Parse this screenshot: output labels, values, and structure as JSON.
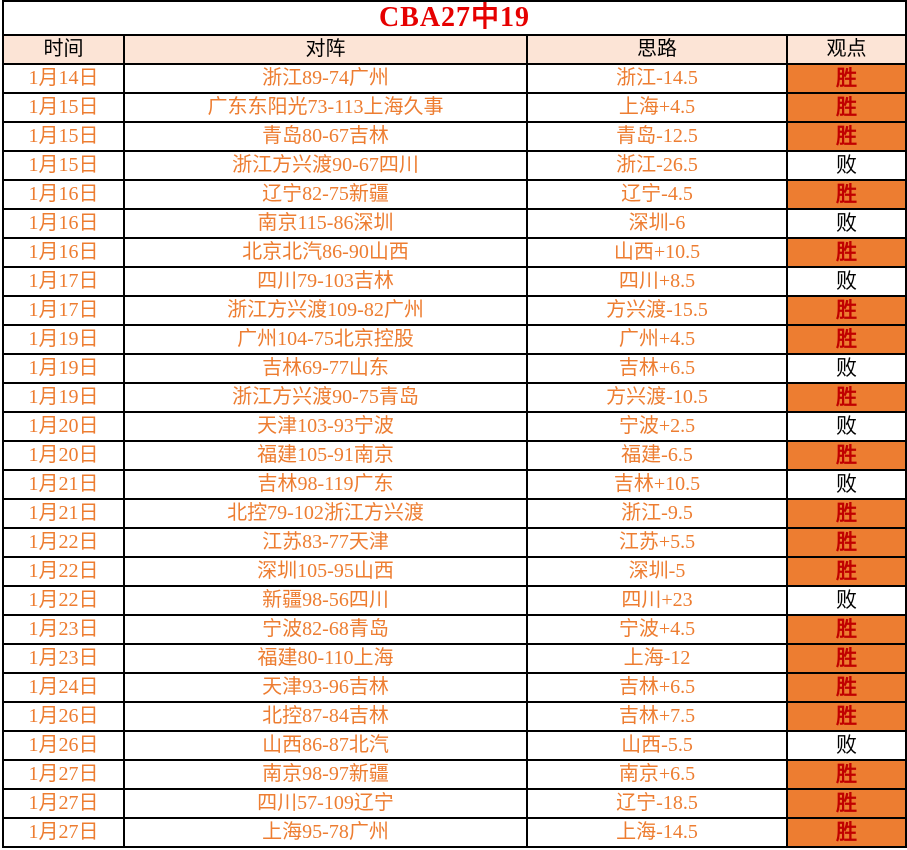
{
  "title": "CBA27中19",
  "labels": {
    "win": "胜",
    "loss": "败"
  },
  "colors": {
    "title_text": "#e60000",
    "header_bg": "#fce4d6",
    "header_text": "#000000",
    "data_text": "#ed7d31",
    "win_bg": "#ed7d31",
    "win_text": "#c00000",
    "loss_text": "#000000",
    "border": "#000000"
  },
  "table": {
    "headers": [
      "时间",
      "对阵",
      "思路",
      "观点"
    ],
    "rows": [
      {
        "date": "1月14日",
        "match": "浙江89-74广州",
        "pick": "浙江-14.5",
        "result": "胜"
      },
      {
        "date": "1月15日",
        "match": "广东东阳光73-113上海久事",
        "pick": "上海+4.5",
        "result": "胜"
      },
      {
        "date": "1月15日",
        "match": "青岛80-67吉林",
        "pick": "青岛-12.5",
        "result": "胜"
      },
      {
        "date": "1月15日",
        "match": "浙江方兴渡90-67四川",
        "pick": "浙江-26.5",
        "result": "败"
      },
      {
        "date": "1月16日",
        "match": "辽宁82-75新疆",
        "pick": "辽宁-4.5",
        "result": "胜"
      },
      {
        "date": "1月16日",
        "match": "南京115-86深圳",
        "pick": "深圳-6",
        "result": "败"
      },
      {
        "date": "1月16日",
        "match": "北京北汽86-90山西",
        "pick": "山西+10.5",
        "result": "胜"
      },
      {
        "date": "1月17日",
        "match": "四川79-103吉林",
        "pick": "四川+8.5",
        "result": "败"
      },
      {
        "date": "1月17日",
        "match": "浙江方兴渡109-82广州",
        "pick": "方兴渡-15.5",
        "result": "胜"
      },
      {
        "date": "1月19日",
        "match": "广州104-75北京控股",
        "pick": "广州+4.5",
        "result": "胜"
      },
      {
        "date": "1月19日",
        "match": "吉林69-77山东",
        "pick": "吉林+6.5",
        "result": "败"
      },
      {
        "date": "1月19日",
        "match": "浙江方兴渡90-75青岛",
        "pick": "方兴渡-10.5",
        "result": "胜"
      },
      {
        "date": "1月20日",
        "match": "天津103-93宁波",
        "pick": "宁波+2.5",
        "result": "败"
      },
      {
        "date": "1月20日",
        "match": "福建105-91南京",
        "pick": "福建-6.5",
        "result": "胜"
      },
      {
        "date": "1月21日",
        "match": "吉林98-119广东",
        "pick": "吉林+10.5",
        "result": "败"
      },
      {
        "date": "1月21日",
        "match": "北控79-102浙江方兴渡",
        "pick": "浙江-9.5",
        "result": "胜"
      },
      {
        "date": "1月22日",
        "match": "江苏83-77天津",
        "pick": "江苏+5.5",
        "result": "胜"
      },
      {
        "date": "1月22日",
        "match": "深圳105-95山西",
        "pick": "深圳-5",
        "result": "胜"
      },
      {
        "date": "1月22日",
        "match": "新疆98-56四川",
        "pick": "四川+23",
        "result": "败"
      },
      {
        "date": "1月23日",
        "match": "宁波82-68青岛",
        "pick": "宁波+4.5",
        "result": "胜"
      },
      {
        "date": "1月23日",
        "match": "福建80-110上海",
        "pick": "上海-12",
        "result": "胜"
      },
      {
        "date": "1月24日",
        "match": "天津93-96吉林",
        "pick": "吉林+6.5",
        "result": "胜"
      },
      {
        "date": "1月26日",
        "match": "北控87-84吉林",
        "pick": "吉林+7.5",
        "result": "胜"
      },
      {
        "date": "1月26日",
        "match": "山西86-87北汽",
        "pick": "山西-5.5",
        "result": "败"
      },
      {
        "date": "1月27日",
        "match": "南京98-97新疆",
        "pick": "南京+6.5",
        "result": "胜"
      },
      {
        "date": "1月27日",
        "match": "四川57-109辽宁",
        "pick": "辽宁-18.5",
        "result": "胜"
      },
      {
        "date": "1月27日",
        "match": "上海95-78广州",
        "pick": "上海-14.5",
        "result": "胜"
      }
    ]
  }
}
